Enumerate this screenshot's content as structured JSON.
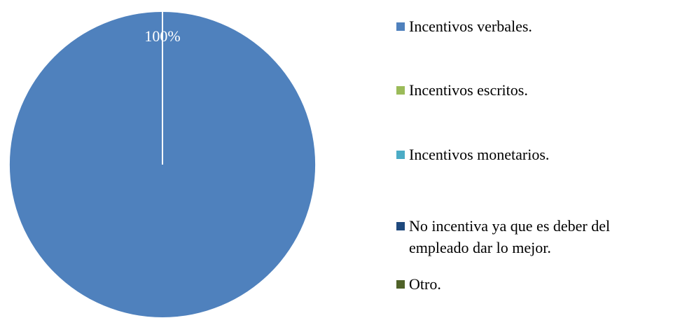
{
  "chart_data": {
    "type": "pie",
    "categories": [
      "Incentivos verbales.",
      "Incentivos escritos.",
      "Incentivos monetarios.",
      "No incentiva ya que es deber del empleado dar lo mejor.",
      "Otro."
    ],
    "values": [
      100,
      0,
      0,
      0,
      0
    ],
    "value_labels": [
      "100%",
      null,
      null,
      null,
      null
    ],
    "colors": [
      "#4f81bd",
      "#9bbb59",
      "#4bacc6",
      "#1f497d",
      "#4f6228"
    ],
    "legend": "right"
  }
}
